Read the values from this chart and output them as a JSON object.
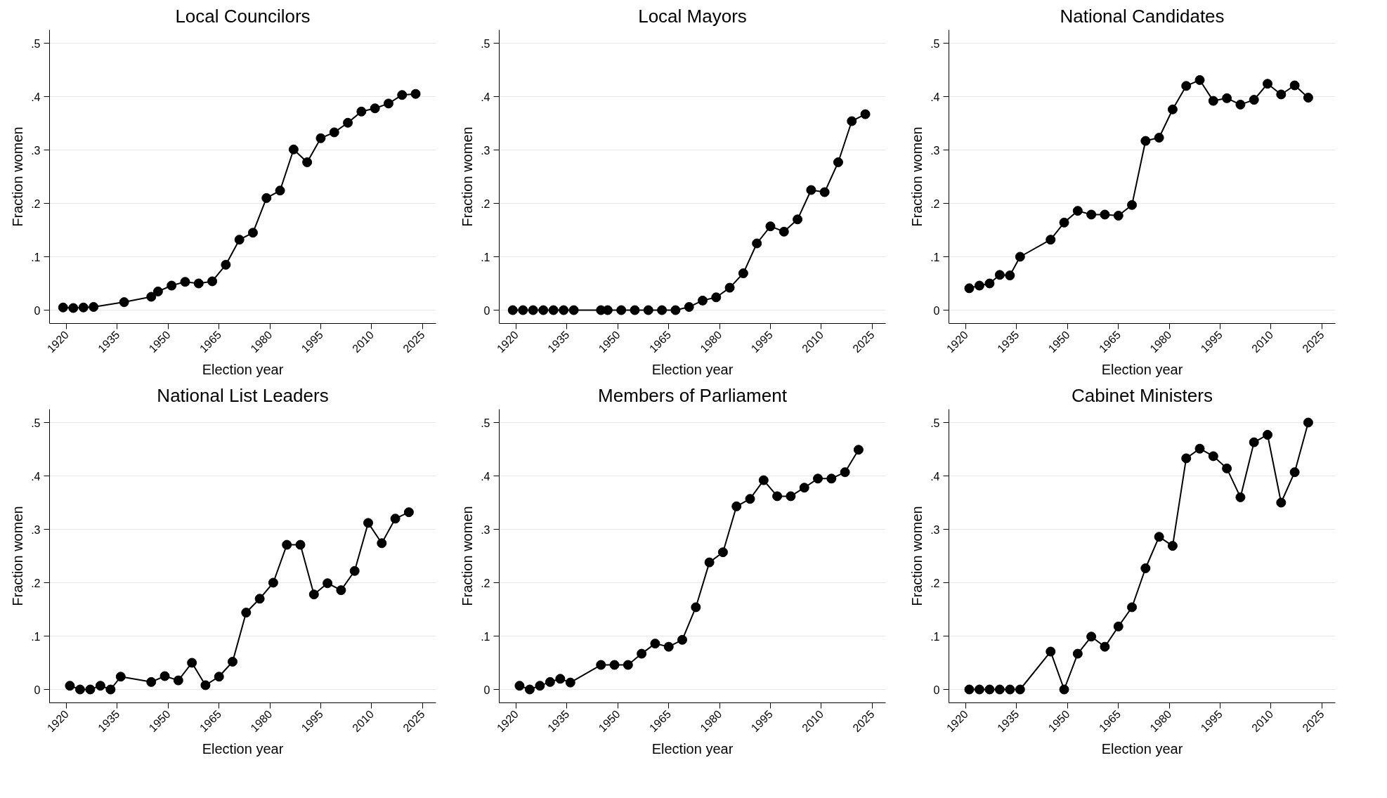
{
  "chart_data": [
    {
      "type": "line",
      "title": "Local Councilors",
      "xlabel": "Election year",
      "ylabel": "Fraction women",
      "marker": "circle",
      "line_style": "solid",
      "grid": "y",
      "xlim": [
        1915,
        2029
      ],
      "ylim": [
        -0.025,
        0.525
      ],
      "xticks": [
        1920,
        1935,
        1950,
        1965,
        1980,
        1995,
        2010,
        2025
      ],
      "yticks": [
        0,
        {
          "value": 0.1,
          "label": ".1"
        },
        {
          "value": 0.2,
          "label": ".2"
        },
        {
          "value": 0.3,
          "label": ".3"
        },
        {
          "value": 0.4,
          "label": ".4"
        },
        {
          "value": 0.5,
          "label": ".5"
        }
      ],
      "series": [
        {
          "color": "#000000",
          "x": [
            1919,
            1922,
            1925,
            1928,
            1937,
            1945,
            1947,
            1951,
            1955,
            1959,
            1963,
            1967,
            1971,
            1975,
            1979,
            1983,
            1987,
            1991,
            1995,
            1999,
            2003,
            2007,
            2011,
            2015,
            2019,
            2023
          ],
          "values": [
            0.005,
            0.004,
            0.005,
            0.006,
            0.015,
            0.025,
            0.035,
            0.046,
            0.053,
            0.05,
            0.054,
            0.085,
            0.132,
            0.145,
            0.21,
            0.224,
            0.301,
            0.277,
            0.322,
            0.333,
            0.351,
            0.372,
            0.378,
            0.387,
            0.403,
            0.405
          ]
        }
      ]
    },
    {
      "type": "line",
      "title": "Local Mayors",
      "xlabel": "Election year",
      "ylabel": "Fraction women",
      "marker": "circle",
      "line_style": "solid",
      "grid": "y",
      "xlim": [
        1915,
        2029
      ],
      "ylim": [
        -0.025,
        0.525
      ],
      "xticks": [
        1920,
        1935,
        1950,
        1965,
        1980,
        1995,
        2010,
        2025
      ],
      "yticks": [
        0,
        {
          "value": 0.1,
          "label": ".1"
        },
        {
          "value": 0.2,
          "label": ".2"
        },
        {
          "value": 0.3,
          "label": ".3"
        },
        {
          "value": 0.4,
          "label": ".4"
        },
        {
          "value": 0.5,
          "label": ".5"
        }
      ],
      "series": [
        {
          "color": "#000000",
          "x": [
            1919,
            1922,
            1925,
            1928,
            1931,
            1934,
            1937,
            1945,
            1947,
            1951,
            1955,
            1959,
            1963,
            1967,
            1971,
            1975,
            1979,
            1983,
            1987,
            1991,
            1995,
            1999,
            2003,
            2007,
            2011,
            2015,
            2019,
            2023
          ],
          "values": [
            0,
            0,
            0,
            0,
            0,
            0,
            0,
            0,
            0,
            0,
            0,
            0,
            0,
            0,
            0.006,
            0.018,
            0.024,
            0.042,
            0.069,
            0.125,
            0.157,
            0.147,
            0.17,
            0.225,
            0.221,
            0.277,
            0.354,
            0.367
          ]
        }
      ]
    },
    {
      "type": "line",
      "title": "National Candidates",
      "xlabel": "Election year",
      "ylabel": "Fraction women",
      "marker": "circle",
      "line_style": "solid",
      "grid": "y",
      "xlim": [
        1915,
        2029
      ],
      "ylim": [
        -0.025,
        0.525
      ],
      "xticks": [
        1920,
        1935,
        1950,
        1965,
        1980,
        1995,
        2010,
        2025
      ],
      "yticks": [
        0,
        {
          "value": 0.1,
          "label": ".1"
        },
        {
          "value": 0.2,
          "label": ".2"
        },
        {
          "value": 0.3,
          "label": ".3"
        },
        {
          "value": 0.4,
          "label": ".4"
        },
        {
          "value": 0.5,
          "label": ".5"
        }
      ],
      "series": [
        {
          "color": "#000000",
          "x": [
            1921,
            1924,
            1927,
            1930,
            1933,
            1936,
            1945,
            1949,
            1953,
            1957,
            1961,
            1965,
            1969,
            1973,
            1977,
            1981,
            1985,
            1989,
            1993,
            1997,
            2001,
            2005,
            2009,
            2013,
            2017,
            2021
          ],
          "values": [
            0.041,
            0.046,
            0.05,
            0.066,
            0.065,
            0.1,
            0.132,
            0.164,
            0.186,
            0.179,
            0.179,
            0.177,
            0.197,
            0.317,
            0.323,
            0.376,
            0.42,
            0.431,
            0.392,
            0.397,
            0.385,
            0.394,
            0.424,
            0.404,
            0.421,
            0.398
          ]
        }
      ]
    },
    {
      "type": "line",
      "title": "National List Leaders",
      "xlabel": "Election year",
      "ylabel": "Fraction women",
      "marker": "circle",
      "line_style": "solid",
      "grid": "y",
      "xlim": [
        1915,
        2029
      ],
      "ylim": [
        -0.025,
        0.525
      ],
      "xticks": [
        1920,
        1935,
        1950,
        1965,
        1980,
        1995,
        2010,
        2025
      ],
      "yticks": [
        0,
        {
          "value": 0.1,
          "label": ".1"
        },
        {
          "value": 0.2,
          "label": ".2"
        },
        {
          "value": 0.3,
          "label": ".3"
        },
        {
          "value": 0.4,
          "label": ".4"
        },
        {
          "value": 0.5,
          "label": ".5"
        }
      ],
      "series": [
        {
          "color": "#000000",
          "x": [
            1921,
            1924,
            1927,
            1930,
            1933,
            1936,
            1945,
            1949,
            1953,
            1957,
            1961,
            1965,
            1969,
            1973,
            1977,
            1981,
            1985,
            1989,
            1993,
            1997,
            2001,
            2005,
            2009,
            2013,
            2017,
            2021
          ],
          "values": [
            0.007,
            0,
            0,
            0.007,
            0,
            0.024,
            0.014,
            0.025,
            0.017,
            0.05,
            0.008,
            0.024,
            0.052,
            0.144,
            0.17,
            0.2,
            0.271,
            0.271,
            0.178,
            0.199,
            0.186,
            0.222,
            0.312,
            0.274,
            0.32,
            0.332
          ]
        }
      ]
    },
    {
      "type": "line",
      "title": "Members of Parliament",
      "xlabel": "Election year",
      "ylabel": "Fraction women",
      "marker": "circle",
      "line_style": "solid",
      "grid": "y",
      "xlim": [
        1915,
        2029
      ],
      "ylim": [
        -0.025,
        0.525
      ],
      "xticks": [
        1920,
        1935,
        1950,
        1965,
        1980,
        1995,
        2010,
        2025
      ],
      "yticks": [
        0,
        {
          "value": 0.1,
          "label": ".1"
        },
        {
          "value": 0.2,
          "label": ".2"
        },
        {
          "value": 0.3,
          "label": ".3"
        },
        {
          "value": 0.4,
          "label": ".4"
        },
        {
          "value": 0.5,
          "label": ".5"
        }
      ],
      "series": [
        {
          "color": "#000000",
          "x": [
            1921,
            1924,
            1927,
            1930,
            1933,
            1936,
            1945,
            1949,
            1953,
            1957,
            1961,
            1965,
            1969,
            1973,
            1977,
            1981,
            1985,
            1989,
            1993,
            1997,
            2001,
            2005,
            2009,
            2013,
            2017,
            2021
          ],
          "values": [
            0.007,
            0,
            0.007,
            0.014,
            0.02,
            0.013,
            0.046,
            0.046,
            0.046,
            0.067,
            0.086,
            0.08,
            0.093,
            0.154,
            0.238,
            0.257,
            0.343,
            0.357,
            0.392,
            0.362,
            0.362,
            0.378,
            0.395,
            0.395,
            0.407,
            0.449
          ]
        }
      ]
    },
    {
      "type": "line",
      "title": "Cabinet Ministers",
      "xlabel": "Election year",
      "ylabel": "Fraction women",
      "marker": "circle",
      "line_style": "solid",
      "grid": "y",
      "xlim": [
        1915,
        2029
      ],
      "ylim": [
        -0.025,
        0.525
      ],
      "xticks": [
        1920,
        1935,
        1950,
        1965,
        1980,
        1995,
        2010,
        2025
      ],
      "yticks": [
        0,
        {
          "value": 0.1,
          "label": ".1"
        },
        {
          "value": 0.2,
          "label": ".2"
        },
        {
          "value": 0.3,
          "label": ".3"
        },
        {
          "value": 0.4,
          "label": ".4"
        },
        {
          "value": 0.5,
          "label": ".5"
        }
      ],
      "series": [
        {
          "color": "#000000",
          "x": [
            1921,
            1924,
            1927,
            1930,
            1933,
            1936,
            1945,
            1949,
            1953,
            1957,
            1961,
            1965,
            1969,
            1973,
            1977,
            1981,
            1985,
            1989,
            1993,
            1997,
            2001,
            2005,
            2009,
            2013,
            2017,
            2021
          ],
          "values": [
            0,
            0,
            0,
            0,
            0,
            0,
            0.071,
            0,
            0.067,
            0.099,
            0.08,
            0.118,
            0.154,
            0.227,
            0.286,
            0.269,
            0.433,
            0.451,
            0.437,
            0.414,
            0.36,
            0.463,
            0.477,
            0.35,
            0.407,
            0.5
          ]
        }
      ]
    }
  ]
}
